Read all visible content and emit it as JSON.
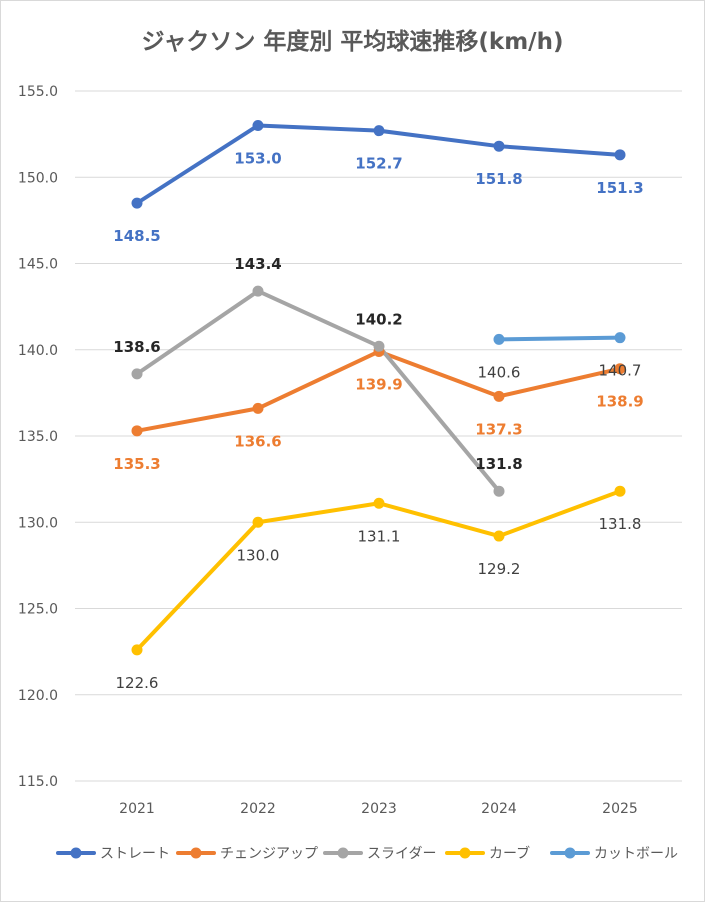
{
  "chart_data": {
    "type": "line",
    "title": "ジャクソン 年度別 平均球速推移(km/h)",
    "categories": [
      "2021",
      "2022",
      "2023",
      "2024",
      "2025"
    ],
    "ylim": [
      115,
      155
    ],
    "yticks": [
      "155.0",
      "150.0",
      "145.0",
      "140.0",
      "135.0",
      "130.0",
      "125.0",
      "120.0",
      "115.0"
    ],
    "grid": true,
    "legend_position": "bottom",
    "series": [
      {
        "name": "ストレート",
        "color": "#4472C4",
        "label_color": "#4472C4",
        "label_pos": "below",
        "label_bold": true,
        "values": [
          148.5,
          153.0,
          152.7,
          151.8,
          151.3
        ],
        "labels": [
          "148.5",
          "153.0",
          "152.7",
          "151.8",
          "151.3"
        ]
      },
      {
        "name": "チェンジアップ",
        "color": "#ED7D31",
        "label_color": "#ED7D31",
        "label_pos": "below",
        "label_bold": true,
        "values": [
          135.3,
          136.6,
          139.9,
          137.3,
          138.9
        ],
        "labels": [
          "135.3",
          "136.6",
          "139.9",
          "137.3",
          "138.9"
        ]
      },
      {
        "name": "スライダー",
        "color": "#A5A5A5",
        "label_color": "#262626",
        "label_pos": "above",
        "label_bold": true,
        "values": [
          138.6,
          143.4,
          140.2,
          131.8,
          null
        ],
        "labels": [
          "138.6",
          "143.4",
          "140.2",
          "131.8",
          ""
        ]
      },
      {
        "name": "カーブ",
        "color": "#FFC000",
        "label_color": "#404040",
        "label_pos": "below",
        "label_bold": false,
        "values": [
          122.6,
          130.0,
          131.1,
          129.2,
          131.8
        ],
        "labels": [
          "122.6",
          "130.0",
          "131.1",
          "129.2",
          "131.8"
        ]
      },
      {
        "name": "カットボール",
        "color": "#5B9BD5",
        "label_color": "#404040",
        "label_pos": "below",
        "label_bold": false,
        "values": [
          null,
          null,
          null,
          140.6,
          140.7
        ],
        "labels": [
          "",
          "",
          "",
          "140.6",
          "140.7"
        ]
      }
    ]
  }
}
